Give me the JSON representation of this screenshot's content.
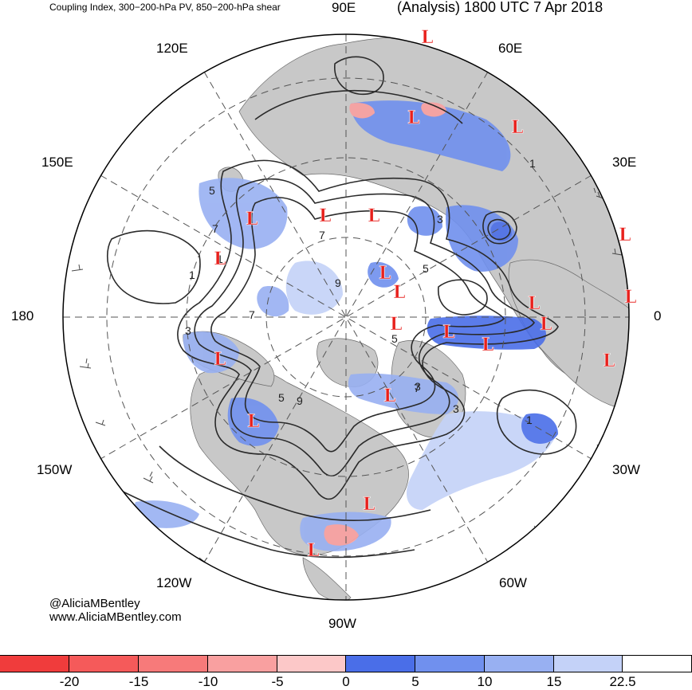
{
  "header": {
    "description": "Coupling Index, 300−200-hPa PV, 850−200-hPa shear",
    "analysis_time": "(Analysis) 1800 UTC 7 Apr 2018"
  },
  "map": {
    "projection": "north-polar-stereographic",
    "longitude_labels": [
      "90E",
      "60E",
      "30E",
      "0",
      "30W",
      "60W",
      "90W",
      "120W",
      "150W",
      "180",
      "150E",
      "120E"
    ],
    "contour_labels": [
      "1",
      "1",
      "1",
      "1",
      "3",
      "3",
      "3",
      "3",
      "5",
      "5",
      "5",
      "5",
      "7",
      "7",
      "7",
      "7",
      "9",
      "9"
    ],
    "low_marker": "L",
    "low_count": 25,
    "colors": {
      "land": "#c8c8c8",
      "ocean": "#ffffff",
      "contour": "#2a2a2a",
      "low_marker": "#e8201c",
      "graticule": "#555555"
    }
  },
  "colorbar": {
    "ticks": [
      "-20",
      "-15",
      "-10",
      "-5",
      "0",
      "5",
      "10",
      "15",
      "22.5"
    ],
    "colors": [
      "#f03c3c",
      "#f55a5a",
      "#f77a7a",
      "#f9a0a0",
      "#fcc8c8",
      "#4a6ee8",
      "#7090ee",
      "#98b0f2",
      "#c4d2f8",
      "#ffffff"
    ]
  },
  "credits": {
    "handle": "@AliciaMBentley",
    "website": "www.AliciaMBentley.com"
  }
}
